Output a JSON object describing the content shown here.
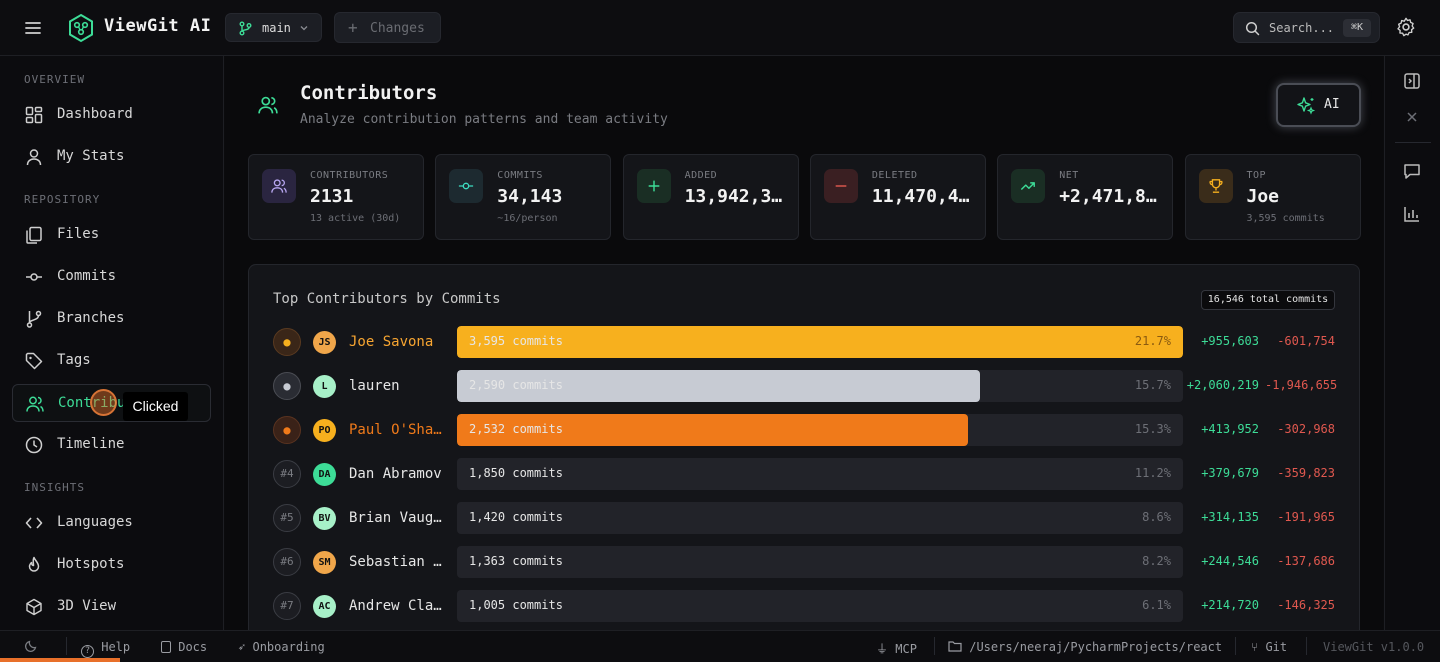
{
  "app": {
    "name": "ViewGit AI",
    "branch": "main",
    "changes_label": "Changes",
    "search_placeholder": "Search...",
    "search_shortcut": "⌘K"
  },
  "sidebar": {
    "sections": [
      {
        "label": "OVERVIEW",
        "items": [
          {
            "label": "Dashboard",
            "icon": "dashboard-icon"
          },
          {
            "label": "My Stats",
            "icon": "user-icon"
          }
        ]
      },
      {
        "label": "REPOSITORY",
        "items": [
          {
            "label": "Files",
            "icon": "files-icon"
          },
          {
            "label": "Commits",
            "icon": "commit-icon"
          },
          {
            "label": "Branches",
            "icon": "branch-icon"
          },
          {
            "label": "Tags",
            "icon": "tag-icon"
          },
          {
            "label": "Contributors",
            "icon": "users-icon",
            "active": true
          },
          {
            "label": "Timeline",
            "icon": "clock-icon"
          }
        ]
      },
      {
        "label": "INSIGHTS",
        "items": [
          {
            "label": "Languages",
            "icon": "code-icon"
          },
          {
            "label": "Hotspots",
            "icon": "flame-icon"
          },
          {
            "label": "3D View",
            "icon": "cube-icon"
          }
        ]
      }
    ],
    "contributors_visible_text": "Contribu",
    "tooltip": "Clicked"
  },
  "page": {
    "title": "Contributors",
    "subtitle": "Analyze contribution patterns and team activity",
    "ai_button": "AI"
  },
  "stats": [
    {
      "label": "CONTRIBUTORS",
      "value": "2131",
      "sub": "13 active (30d)",
      "icon": "users-icon",
      "color": "#2a2540"
    },
    {
      "label": "COMMITS",
      "value": "34,143",
      "sub": "~16/person",
      "icon": "commit-icon",
      "color": "#1d2a30"
    },
    {
      "label": "ADDED",
      "value": "13,942,3…",
      "sub": "",
      "icon": "plus-icon",
      "color": "#1a2e24"
    },
    {
      "label": "DELETED",
      "value": "11,470,4…",
      "sub": "",
      "icon": "minus-icon",
      "color": "#3a1f22"
    },
    {
      "label": "NET",
      "value": "+2,471,8…",
      "sub": "",
      "icon": "trending-up-icon",
      "color": "#1a2e24"
    },
    {
      "label": "TOP",
      "value": "Joe",
      "sub": "3,595 commits",
      "icon": "trophy-icon",
      "color": "#3a2c1a"
    }
  ],
  "panel": {
    "title": "Top Contributors by Commits",
    "total": "16,546 total commits"
  },
  "contributors": [
    {
      "rank": "🥇",
      "initials": "JS",
      "name": "Joe Savona",
      "commits": "3,595 commits",
      "pct": "21.7%",
      "share": 1.0,
      "added": "+955,603",
      "deleted": "-601,754",
      "avatar_color": "#f0a64a",
      "bar_color": "#f7b01e",
      "name_color": "#f7a531",
      "medal": "gold"
    },
    {
      "rank": "🥈",
      "initials": "L",
      "name": "lauren",
      "commits": "2,590 commits",
      "pct": "15.7%",
      "share": 0.72,
      "added": "+2,060,219",
      "deleted": "-1,946,655",
      "avatar_color": "#a7f0c8",
      "bar_color": "#c7cbd3",
      "name_color": "#e6e6e6",
      "medal": "silver"
    },
    {
      "rank": "🥉",
      "initials": "PO",
      "name": "Paul O'Shannessy",
      "commits": "2,532 commits",
      "pct": "15.3%",
      "share": 0.704,
      "added": "+413,952",
      "deleted": "-302,968",
      "avatar_color": "#f7b01e",
      "bar_color": "#f07a1a",
      "name_color": "#f07a1a",
      "medal": "bronze"
    },
    {
      "rank": "#4",
      "initials": "DA",
      "name": "Dan Abramov",
      "commits": "1,850 commits",
      "pct": "11.2%",
      "share": 0,
      "added": "+379,679",
      "deleted": "-359,823",
      "avatar_color": "#3ddc97",
      "bar_color": "",
      "name_color": "#e6e6e6"
    },
    {
      "rank": "#5",
      "initials": "BV",
      "name": "Brian Vaughn",
      "commits": "1,420 commits",
      "pct": "8.6%",
      "share": 0,
      "added": "+314,135",
      "deleted": "-191,965",
      "avatar_color": "#a7f0c8",
      "bar_color": "",
      "name_color": "#e6e6e6"
    },
    {
      "rank": "#6",
      "initials": "SM",
      "name": "Sebastian Markbåge",
      "commits": "1,363 commits",
      "pct": "8.2%",
      "share": 0,
      "added": "+244,546",
      "deleted": "-137,686",
      "avatar_color": "#f0a64a",
      "bar_color": "",
      "name_color": "#e6e6e6"
    },
    {
      "rank": "#7",
      "initials": "AC",
      "name": "Andrew Clark",
      "commits": "1,005 commits",
      "pct": "6.1%",
      "share": 0,
      "added": "+214,720",
      "deleted": "-146,325",
      "avatar_color": "#a7f0c8",
      "bar_color": "",
      "name_color": "#e6e6e6"
    }
  ],
  "statusbar": {
    "help": "Help",
    "docs": "Docs",
    "onboarding": "Onboarding",
    "mcp": "MCP",
    "path": "/Users/neeraj/PycharmProjects/react",
    "git": "Git",
    "version": "ViewGit v1.0.0"
  }
}
